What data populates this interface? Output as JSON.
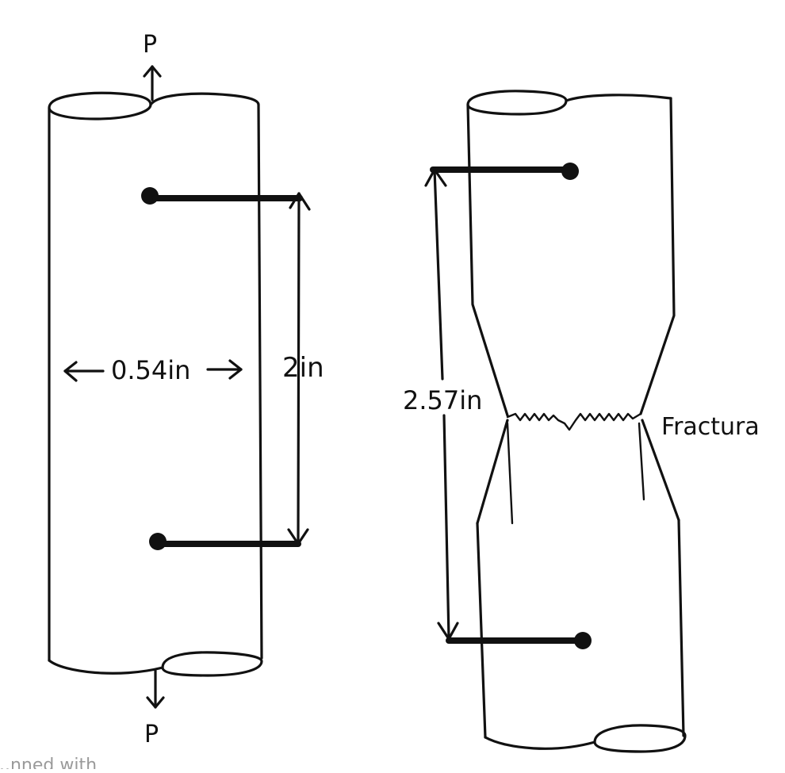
{
  "left_specimen": {
    "load_top": "P",
    "load_bottom": "P",
    "diameter": "0.54in",
    "gauge_length": "2in"
  },
  "right_specimen": {
    "final_length": "2.57in",
    "fracture_label": "Fractura"
  },
  "watermark": "...nned with",
  "colors": {
    "ink": "#111111",
    "paper": "#ffffff"
  }
}
